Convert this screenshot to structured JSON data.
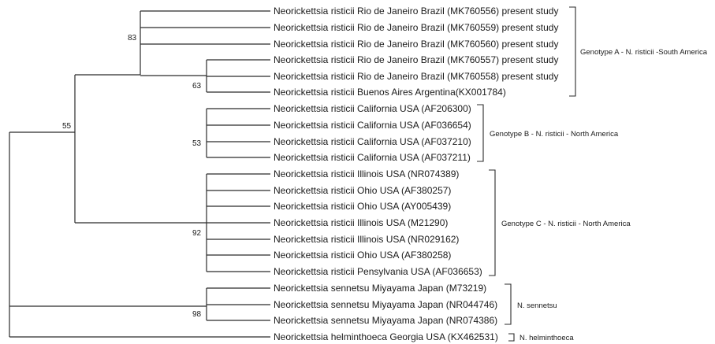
{
  "taxa": [
    "Neorickettsia risticii Rio de Janeiro Brazil (MK760556) present study",
    "Neorickettsia risticii Rio de Janeiro Brazil (MK760559) present study",
    "Neorickettsia risticii Rio de Janeiro Brazil (MK760560) present study",
    "Neorickettsia risticii Rio de Janeiro Brazil (MK760557) present study",
    "Neorickettsia risticii Rio de Janeiro Brazil (MK760558) present study",
    "Neorickettsia risticii Buenos Aires Argentina(KX001784)",
    "Neorickettsia risticii California USA (AF206300)",
    "Neorickettsia risticii California USA (AF036654)",
    "Neorickettsia risticii California USA (AF037210)",
    "Neorickettsia risticii California USA (AF037211)",
    "Neorickettsia risticii Illinois USA (NR074389)",
    "Neorickettsia risticii Ohio USA (AF380257)",
    "Neorickettsia risticii Ohio USA (AY005439)",
    "Neorickettsia risticii Illinois USA (M21290)",
    "Neorickettsia risticii Illinois USA (NR029162)",
    "Neorickettsia risticii Ohio USA (AF380258)",
    "Neorickettsia risticii Pensylvania USA (AF036653)",
    "Neorickettsia sennetsu Miyayama Japan (M73219)",
    "Neorickettsia sennetsu Miyayama Japan (NR044746)",
    "Neorickettsia sennetsu Miyayama Japan (NR074386)",
    "Neorickettsia helminthoeca Georgia USA (KX462531)"
  ],
  "bootstrap": [
    "83",
    "63",
    "55",
    "53",
    "92",
    "98"
  ],
  "groups": [
    "Genotype A - N. risticii -South America",
    "Genotype B - N. risticii - North America",
    "Genotype C - N. risticii - North America",
    "N. sennetsu",
    "N. helminthoeca"
  ]
}
